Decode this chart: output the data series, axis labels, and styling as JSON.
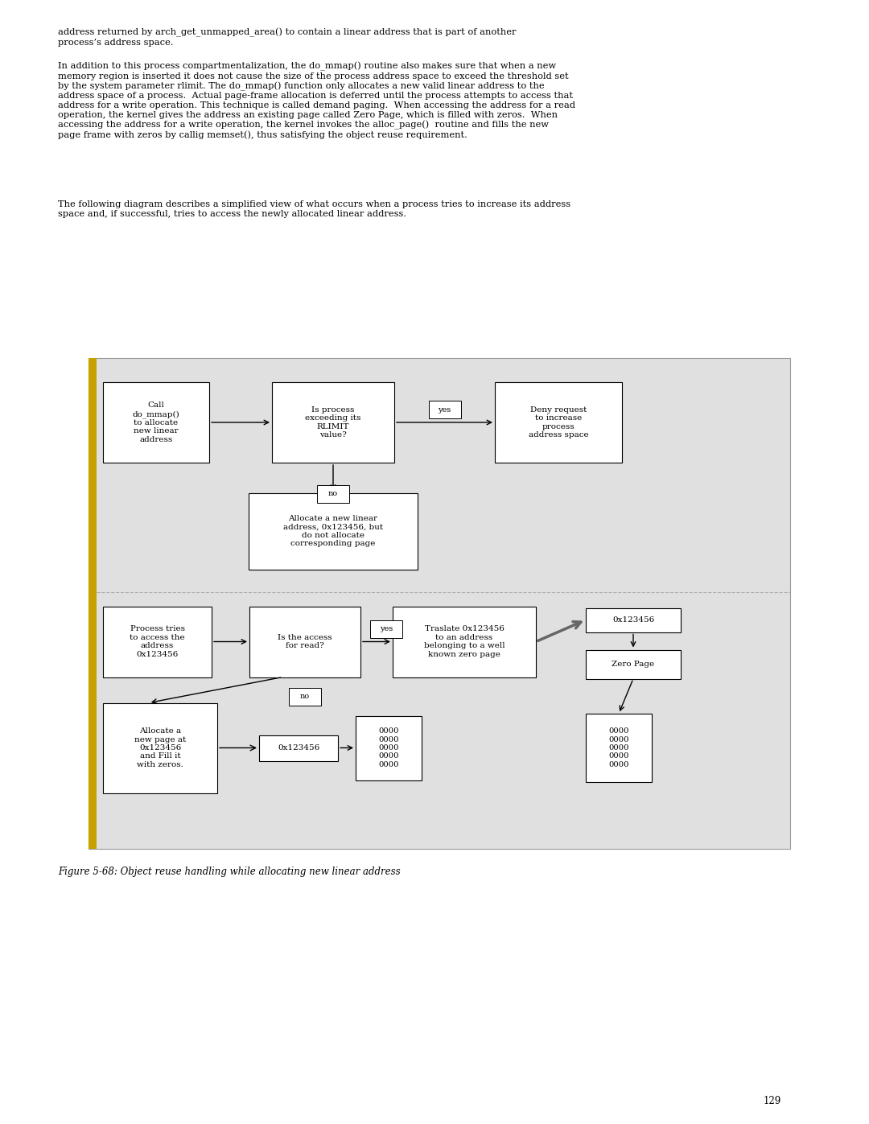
{
  "bg_color": "#ffffff",
  "diagram_bg": "#e0e0e0",
  "box_color": "#ffffff",
  "box_edge": "#000000",
  "text_color": "#000000",
  "page_width": 10.8,
  "page_height": 13.97,
  "para1": "address returned by arch_get_unmapped_area() to contain a linear address that is part of another\nprocess’s address space.",
  "para2": "In addition to this process compartmentalization, the do_mmap() routine also makes sure that when a new\nmemory region is inserted it does not cause the size of the process address space to exceed the threshold set\nby the system parameter rlimit. The do_mmap() function only allocates a new valid linear address to the\naddress space of a process.  Actual page-frame allocation is deferred until the process attempts to access that\naddress for a write operation. This technique is called demand paging.  When accessing the address for a read\noperation, the kernel gives the address an existing page called Zero Page, which is filled with zeros.  When\naccessing the address for a write operation, the kernel invokes the alloc_page()  routine and fills the new\npage frame with zeros by callig memset(), thus satisfying the object reuse requirement.",
  "para3": "The following diagram describes a simplified view of what occurs when a process tries to increase its address\nspace and, if successful, tries to access the newly allocated linear address.",
  "figure_caption": "Figure 5-68: Object reuse handling while allocating new linear address",
  "page_number": "129",
  "strip_color": "#c8a000",
  "sep_color": "#aaaaaa",
  "arrow_color": "#000000",
  "thick_arrow_color": "#666666"
}
